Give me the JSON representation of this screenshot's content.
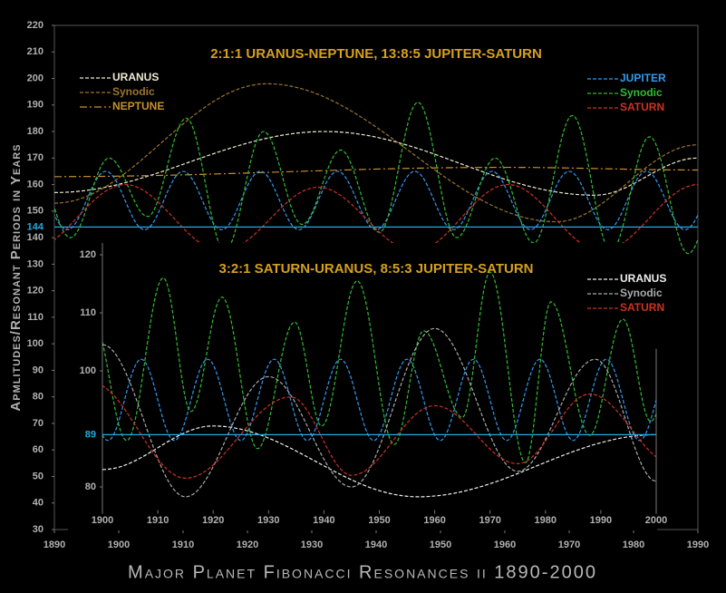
{
  "title": "Major Planet Fibonacci Resonances ii 1890-2000",
  "ylabel": "Apmlitudes/Resonant Periods in Years",
  "chart_data": [
    {
      "type": "line",
      "title": "2:1:1 URANUS-NEPTUNE, 13:8:5 JUPITER-SATURN",
      "xlim": [
        1890,
        1990
      ],
      "xticks": [
        1890,
        1900,
        1910,
        1920,
        1930,
        1940,
        1950,
        1960,
        1970,
        1980,
        1990
      ],
      "ylim": [
        30,
        220
      ],
      "yticks": [
        30,
        40,
        50,
        60,
        70,
        80,
        90,
        100,
        110,
        120,
        130,
        140,
        150,
        160,
        170,
        180,
        190,
        200,
        210,
        220
      ],
      "ref_lines": [
        {
          "value": 144,
          "color": "#22aadd"
        }
      ],
      "series": [
        {
          "name": "URANUS",
          "color": "#ecead0",
          "dash": "4 2",
          "legend_corner": "upper left",
          "x": [
            1890,
            1932,
            1974,
            1990
          ],
          "values": [
            157,
            180,
            156,
            170
          ]
        },
        {
          "name": "Synodic",
          "color": "#9a7530",
          "dash": "4 2",
          "legend_corner": "upper left",
          "x": [
            1890,
            1923,
            1968,
            1990
          ],
          "values": [
            153,
            198,
            146,
            175
          ]
        },
        {
          "name": "NEPTUNE",
          "color": "#c8902a",
          "dash": "8 3 2 3",
          "legend_corner": "upper left",
          "x": [
            1890,
            1960,
            1990
          ],
          "values": [
            163,
            166.5,
            165.5
          ]
        },
        {
          "name": "JUPITER",
          "color": "#3399ee",
          "dash": "4 2",
          "legend_corner": "upper right",
          "x": [
            1886,
            1892,
            1898,
            1904,
            1910,
            1916,
            1922,
            1928,
            1934,
            1940,
            1946,
            1952,
            1958,
            1964,
            1970,
            1976,
            1982,
            1988,
            1994
          ],
          "values": [
            165,
            143,
            165,
            143,
            165,
            143,
            165,
            143,
            165,
            143,
            165,
            143,
            165,
            143,
            165,
            143,
            165,
            143,
            165
          ]
        },
        {
          "name": "Synodic",
          "color": "#33bb33",
          "dash": "4 2",
          "legend_corner": "upper right",
          "x": [
            1886,
            1892.5,
            1898.5,
            1904.5,
            1910.5,
            1916.5,
            1922.5,
            1928.5,
            1934.5,
            1940.5,
            1946.5,
            1952.5,
            1958.5,
            1964.5,
            1970.5,
            1976.5,
            1982.5,
            1988.5,
            1994.5
          ],
          "values": [
            175,
            140,
            170,
            148,
            185,
            135,
            180,
            145,
            173,
            142,
            191,
            140,
            170,
            138,
            186,
            135,
            178,
            134,
            170
          ]
        },
        {
          "name": "SATURN",
          "color": "#cc3322",
          "dash": "4 2",
          "legend_corner": "upper right",
          "x": [
            1886,
            1901,
            1916,
            1931,
            1946,
            1960.5,
            1975,
            1990
          ],
          "values": [
            135,
            160,
            135,
            159,
            135,
            160,
            135,
            160
          ]
        }
      ]
    },
    {
      "type": "line",
      "title": "3:2:1 SATURN-URANUS, 8:5:3 JUPITER-SATURN",
      "xlim": [
        1900,
        2000
      ],
      "xticks": [
        1900,
        1910,
        1920,
        1930,
        1940,
        1950,
        1960,
        1970,
        1980,
        1990,
        2000
      ],
      "ylim": [
        76,
        121
      ],
      "yticks": [
        80,
        100,
        110,
        120
      ],
      "ref_lines": [
        {
          "value": 89,
          "color": "#22aadd"
        }
      ],
      "series": [
        {
          "color": "#3399ee",
          "dash": "4 2",
          "x": [
            1895,
            1901,
            1907,
            1913,
            1919,
            1925,
            1931,
            1937,
            1943,
            1949,
            1955,
            1961,
            1967,
            1973,
            1979,
            1985,
            1991,
            1997,
            2003
          ],
          "values": [
            102,
            88,
            102,
            88,
            102,
            88,
            102,
            88,
            102,
            88,
            102,
            88,
            102,
            88,
            102,
            88,
            102,
            88,
            102
          ]
        },
        {
          "color": "#33bb33",
          "dash": "4 2",
          "x": [
            1898,
            1904.4,
            1911,
            1916,
            1921.6,
            1928,
            1934.7,
            1939.6,
            1946,
            1952.7,
            1958,
            1965,
            1970,
            1976.4,
            1981,
            1988,
            1994,
            1999,
            2005
          ],
          "values": [
            110,
            88,
            116,
            93,
            112.7,
            86.6,
            108.4,
            90.5,
            115.5,
            87.3,
            106.9,
            92,
            117,
            84.2,
            111.9,
            88.9,
            108.9,
            91.3,
            110
          ]
        },
        {
          "name": "URANUS",
          "color": "#eeeeee",
          "dash": "4 2",
          "legend_corner": "upper right",
          "x": [
            1900,
            1920,
            1957,
            2000
          ],
          "values": [
            83,
            90.5,
            78.3,
            89
          ]
        },
        {
          "name": "Synodic",
          "color": "#aaaaaa",
          "dash": "4 2",
          "legend_corner": "upper right",
          "x": [
            1900,
            1915,
            1930,
            1945,
            1960,
            1975,
            1989,
            2000
          ],
          "values": [
            104.5,
            78.3,
            99,
            80,
            107.3,
            82.7,
            102,
            81
          ]
        },
        {
          "name": "SATURN",
          "color": "#cc3322",
          "dash": "4 2",
          "legend_corner": "upper right",
          "x": [
            1898,
            1915,
            1934,
            1945,
            1960,
            1975,
            1988,
            2003
          ],
          "values": [
            98,
            81.5,
            95.5,
            82,
            94,
            84,
            96,
            84
          ]
        }
      ]
    }
  ]
}
